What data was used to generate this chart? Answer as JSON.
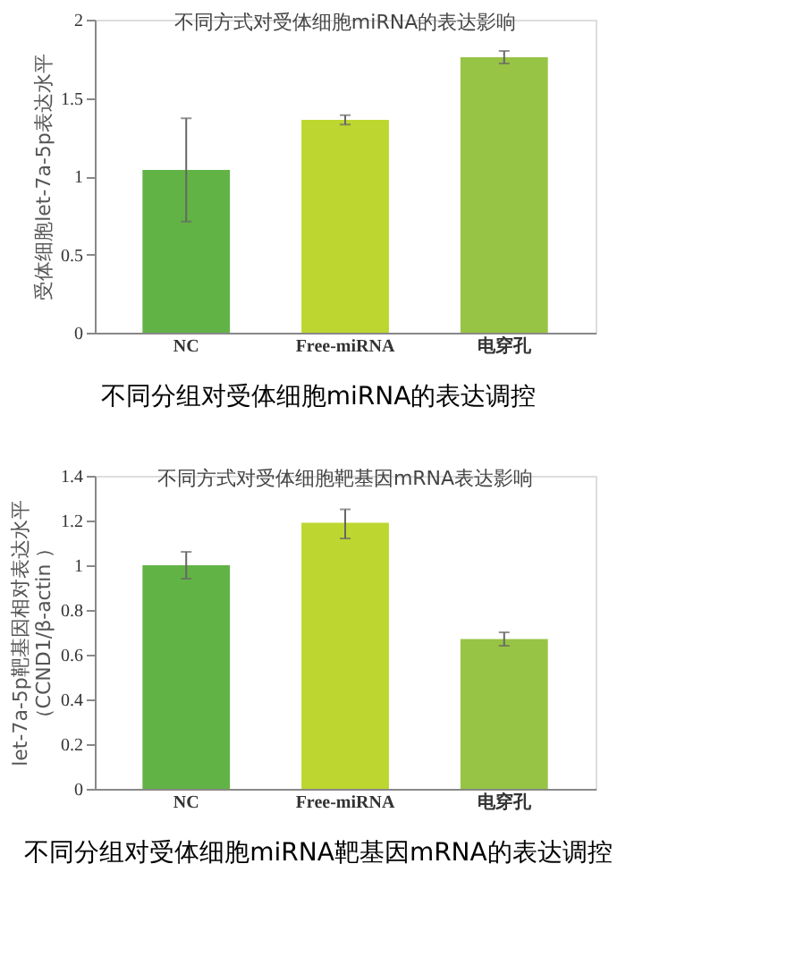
{
  "chart_data": [
    {
      "type": "bar",
      "title": "不同方式对受体细胞miRNA的表达影响",
      "ylabel": "受体细胞let-7a-5p表达水平",
      "categories": [
        "NC",
        "Free-miRNA",
        "电穿孔"
      ],
      "values": [
        1.04,
        1.36,
        1.76
      ],
      "colors": [
        "#62b346",
        "#bdd630",
        "#97c445"
      ],
      "errors": [
        [
          0.71,
          1.37
        ],
        [
          1.33,
          1.39
        ],
        [
          1.72,
          1.8
        ]
      ],
      "ylim": [
        0,
        2
      ],
      "yticks": [
        0,
        0.5,
        1,
        1.5,
        2
      ],
      "grid": false,
      "legend": false,
      "annotations": [
        "不同分组对受体细胞miRNA的表达调控"
      ]
    },
    {
      "type": "bar",
      "title": "不同方式对受体细胞靶基因mRNA表达影响",
      "ylabel": "let-7a-5p靶基因相对表达水平（CCND1/β-actin ）",
      "categories": [
        "NC",
        "Free-miRNA",
        "电穿孔"
      ],
      "values": [
        1.0,
        1.19,
        0.67
      ],
      "colors": [
        "#62b346",
        "#bdd630",
        "#97c445"
      ],
      "errors": [
        [
          0.94,
          1.06
        ],
        [
          1.12,
          1.25
        ],
        [
          0.64,
          0.7
        ]
      ],
      "ylim": [
        0,
        1.4
      ],
      "yticks": [
        0,
        0.2,
        0.4,
        0.6,
        0.8,
        1,
        1.2,
        1.4
      ],
      "grid": false,
      "legend": false,
      "annotations": [
        "不同分组对受体细胞miRNA靶基因mRNA的表达调控"
      ]
    }
  ]
}
